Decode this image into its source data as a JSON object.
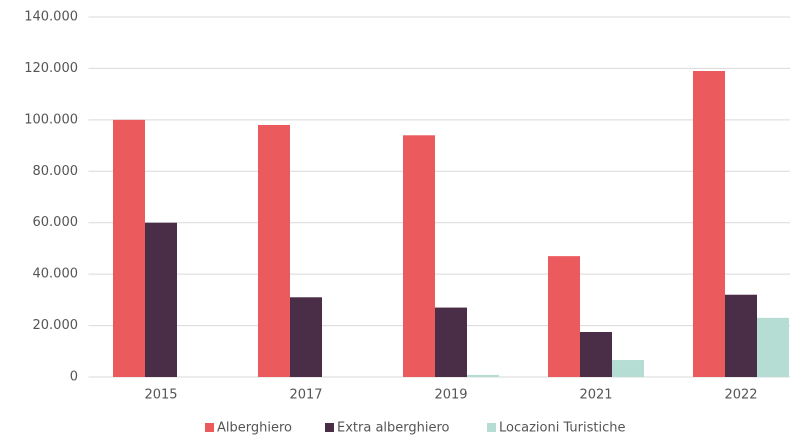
{
  "chart_data": {
    "type": "bar",
    "categories": [
      "2015",
      "2017",
      "2019",
      "2021",
      "2022"
    ],
    "series": [
      {
        "name": "Alberghiero",
        "color": "#eb5b5e",
        "values": [
          100000,
          98000,
          94000,
          47000,
          119000
        ]
      },
      {
        "name": "Extra alberghiero",
        "color": "#4a2e48",
        "values": [
          60000,
          31000,
          27000,
          17500,
          32000
        ]
      },
      {
        "name": "Locazioni Turistiche",
        "color": "#b5ddd3",
        "values": [
          0,
          0,
          800,
          6600,
          23000
        ]
      }
    ],
    "ylim": [
      0,
      140000
    ],
    "yticks": [
      0,
      {
        "value": 20000,
        "label": "20.000"
      },
      {
        "value": 40000,
        "label": "40.000"
      },
      {
        "value": 60000,
        "label": "60.000"
      },
      {
        "value": 80000,
        "label": "80.000"
      },
      {
        "value": 100000,
        "label": "100.000"
      },
      {
        "value": 120000,
        "label": "120.000"
      },
      {
        "value": 140000,
        "label": "140.000"
      }
    ],
    "grid": true,
    "legend": "bottom"
  }
}
